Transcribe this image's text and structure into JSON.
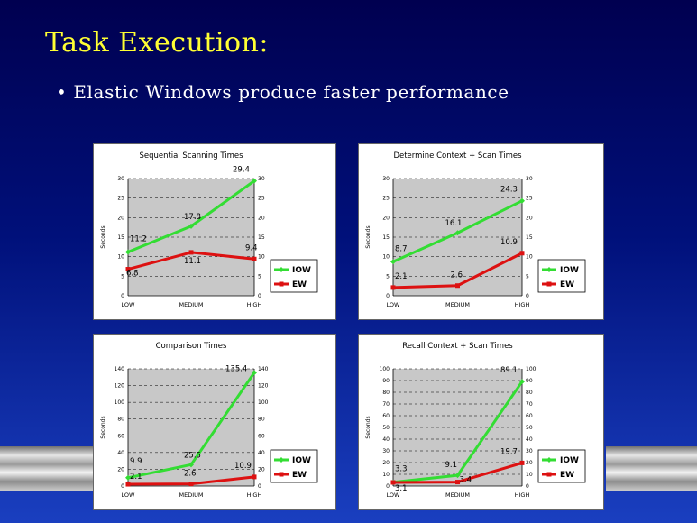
{
  "slide": {
    "title": "Task Execution:",
    "bullet": "• Elastic Windows produce faster performance"
  },
  "colors": {
    "background_top": "#000050",
    "background_bottom": "#1a3fc0",
    "title": "#ffff33",
    "iow": "#33dd33",
    "ew": "#dd1111"
  },
  "chart_data": [
    {
      "type": "line",
      "title": "Sequential Scanning Times",
      "ylabel": "Seconds",
      "categories": [
        "LOW",
        "MEDIUM",
        "HIGH"
      ],
      "ylim": [
        0,
        30
      ],
      "yticks": [
        0,
        5,
        10,
        15,
        20,
        25,
        30
      ],
      "grid": true,
      "legend": "right",
      "series": [
        {
          "name": "IOW",
          "values": [
            11.2,
            17.8,
            29.4
          ],
          "labels": [
            "11.2",
            "17.8",
            "29.4"
          ]
        },
        {
          "name": "EW",
          "values": [
            6.8,
            11.1,
            9.4
          ],
          "labels": [
            "6.8",
            "11.1",
            "9.4"
          ]
        }
      ]
    },
    {
      "type": "line",
      "title": "Determine Context + Scan Times",
      "ylabel": "Seconds",
      "categories": [
        "LOW",
        "MEDIUM",
        "HIGH"
      ],
      "ylim": [
        0,
        30
      ],
      "yticks": [
        0,
        5,
        10,
        15,
        20,
        25,
        30
      ],
      "grid": true,
      "legend": "right",
      "series": [
        {
          "name": "IOW",
          "values": [
            8.7,
            16.1,
            24.3
          ],
          "labels": [
            "8.7",
            "16.1",
            "24.3"
          ]
        },
        {
          "name": "EW",
          "values": [
            2.1,
            2.6,
            10.9
          ],
          "labels": [
            "2.1",
            "2.6",
            "10.9"
          ]
        }
      ]
    },
    {
      "type": "line",
      "title": "Comparison Times",
      "ylabel": "Seconds",
      "categories": [
        "LOW",
        "MEDIUM",
        "HIGH"
      ],
      "ylim": [
        0,
        140
      ],
      "yticks": [
        0,
        20,
        40,
        60,
        80,
        100,
        120,
        140
      ],
      "grid": true,
      "legend": "right",
      "series": [
        {
          "name": "IOW",
          "values": [
            9.9,
            25.5,
            135.4
          ],
          "labels": [
            "9.9",
            "25.5",
            "135.4"
          ]
        },
        {
          "name": "EW",
          "values": [
            2.1,
            2.6,
            10.9
          ],
          "labels": [
            "2.1",
            "2.6",
            "10.9"
          ]
        }
      ]
    },
    {
      "type": "line",
      "title": "Recall Context + Scan Times",
      "ylabel": "Seconds",
      "categories": [
        "LOW",
        "MEDIUM",
        "HIGH"
      ],
      "ylim": [
        0,
        100
      ],
      "yticks": [
        0,
        10,
        20,
        30,
        40,
        50,
        60,
        70,
        80,
        90,
        100
      ],
      "grid": true,
      "legend": "right",
      "series": [
        {
          "name": "IOW",
          "values": [
            3.3,
            9.1,
            89.1
          ],
          "labels": [
            "3.3",
            "9.1",
            "89.1"
          ]
        },
        {
          "name": "EW",
          "values": [
            3.1,
            3.4,
            19.7
          ],
          "labels": [
            "3.1",
            "3.4",
            "19.7"
          ]
        }
      ]
    }
  ]
}
